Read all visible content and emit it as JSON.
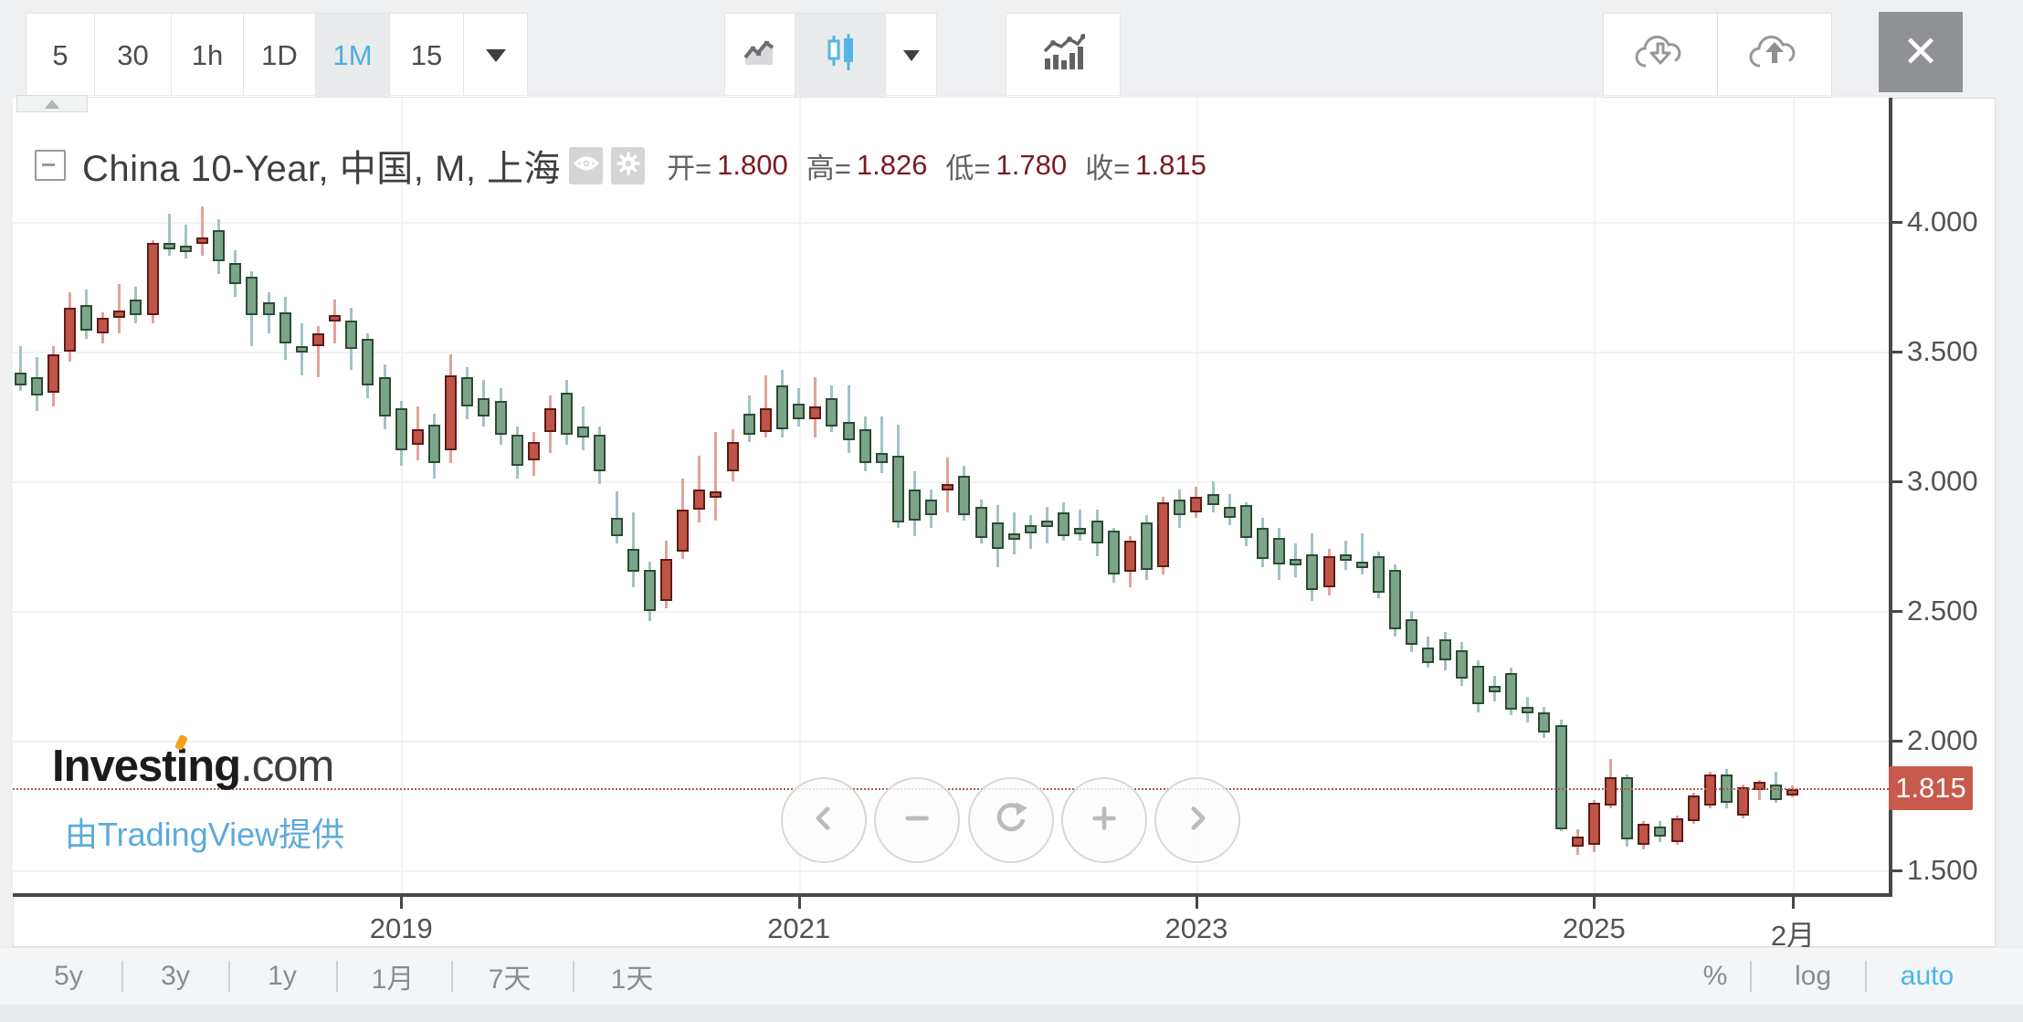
{
  "toolbar": {
    "intervals": [
      {
        "label": "5",
        "active": false
      },
      {
        "label": "30",
        "active": false
      },
      {
        "label": "1h",
        "active": false
      },
      {
        "label": "1D",
        "active": false
      },
      {
        "label": "1M",
        "active": true
      },
      {
        "label": "15",
        "active": false
      }
    ],
    "chart_type_active": "candlestick",
    "accent_blue": "#49b0e3"
  },
  "header": {
    "title": "China 10-Year, 中国, M, 上海",
    "ohlc": [
      {
        "label": "开=",
        "value": "1.800"
      },
      {
        "label": "高=",
        "value": "1.826"
      },
      {
        "label": "低=",
        "value": "1.780"
      },
      {
        "label": "收=",
        "value": "1.815"
      }
    ],
    "value_color": "#7c1a20"
  },
  "branding": {
    "logo_part1": "Invest",
    "logo_i": "i",
    "logo_part2": "ng",
    "logo_suffix": ".com",
    "credit": "由TradingView提供",
    "accent_orange": "#f6a01b",
    "credit_blue": "#5aabdc"
  },
  "nav": [
    "chevron-left-icon",
    "zoom-out-icon",
    "refresh-icon",
    "zoom-in-icon",
    "chevron-right-icon"
  ],
  "bottom_toolbar": {
    "ranges": [
      "5y",
      "3y",
      "1y",
      "1月",
      "7天",
      "1天"
    ],
    "scales": [
      {
        "label": "%",
        "active": false
      },
      {
        "label": "log",
        "active": false
      },
      {
        "label": "auto",
        "active": true
      }
    ],
    "active_color": "#45b8ec"
  },
  "price_axis": {
    "last_price_label": "1.815",
    "badge_color": "#c85a4c"
  },
  "chart_data": {
    "type": "candlestick",
    "title": "China 10-Year, 中国, M, 上海",
    "interval": "1M",
    "current_bar": {
      "open": 1.8,
      "high": 1.826,
      "low": 1.78,
      "close": 1.815
    },
    "last_price": 1.815,
    "up_color": "#bf5449",
    "down_color": "#7ca488",
    "up_wick_color": "#e2a39b",
    "down_wick_color": "#a3c2c6",
    "ylim": [
      1.45,
      4.15
    ],
    "y_ticks": [
      4.0,
      3.5,
      3.0,
      2.5,
      2.0,
      1.5
    ],
    "y_tick_labels": [
      "4.000",
      "3.500",
      "3.000",
      "2.500",
      "2.000",
      "1.500"
    ],
    "x_tick_labels": [
      "2019",
      "2021",
      "2023",
      "2025",
      "2月"
    ],
    "x_tick_indices": [
      23,
      47,
      71,
      95,
      107
    ],
    "grid": true,
    "candles": [
      [
        3.42,
        3.52,
        3.35,
        3.37
      ],
      [
        3.4,
        3.48,
        3.27,
        3.33
      ],
      [
        3.34,
        3.52,
        3.29,
        3.49
      ],
      [
        3.5,
        3.73,
        3.46,
        3.67
      ],
      [
        3.68,
        3.74,
        3.55,
        3.58
      ],
      [
        3.57,
        3.65,
        3.53,
        3.63
      ],
      [
        3.63,
        3.76,
        3.57,
        3.66
      ],
      [
        3.7,
        3.75,
        3.61,
        3.64
      ],
      [
        3.64,
        3.93,
        3.61,
        3.92
      ],
      [
        3.92,
        4.03,
        3.87,
        3.9
      ],
      [
        3.91,
        3.99,
        3.86,
        3.9
      ],
      [
        3.93,
        4.06,
        3.87,
        3.94
      ],
      [
        3.97,
        4.01,
        3.8,
        3.85
      ],
      [
        3.84,
        3.89,
        3.71,
        3.76
      ],
      [
        3.79,
        3.81,
        3.52,
        3.64
      ],
      [
        3.69,
        3.73,
        3.57,
        3.64
      ],
      [
        3.65,
        3.71,
        3.47,
        3.53
      ],
      [
        3.52,
        3.61,
        3.41,
        3.51
      ],
      [
        3.52,
        3.6,
        3.4,
        3.57
      ],
      [
        3.62,
        3.7,
        3.53,
        3.64
      ],
      [
        3.62,
        3.67,
        3.43,
        3.51
      ],
      [
        3.55,
        3.57,
        3.32,
        3.37
      ],
      [
        3.4,
        3.45,
        3.2,
        3.25
      ],
      [
        3.28,
        3.31,
        3.06,
        3.12
      ],
      [
        3.14,
        3.29,
        3.08,
        3.2
      ],
      [
        3.22,
        3.26,
        3.01,
        3.07
      ],
      [
        3.12,
        3.49,
        3.07,
        3.41
      ],
      [
        3.4,
        3.44,
        3.24,
        3.29
      ],
      [
        3.32,
        3.39,
        3.21,
        3.25
      ],
      [
        3.31,
        3.36,
        3.14,
        3.18
      ],
      [
        3.18,
        3.21,
        3.01,
        3.06
      ],
      [
        3.08,
        3.19,
        3.02,
        3.15
      ],
      [
        3.19,
        3.33,
        3.11,
        3.28
      ],
      [
        3.34,
        3.39,
        3.14,
        3.18
      ],
      [
        3.21,
        3.29,
        3.12,
        3.17
      ],
      [
        3.18,
        3.21,
        2.99,
        3.04
      ],
      [
        2.86,
        2.96,
        2.76,
        2.79
      ],
      [
        2.74,
        2.88,
        2.59,
        2.65
      ],
      [
        2.66,
        2.69,
        2.46,
        2.5
      ],
      [
        2.54,
        2.77,
        2.51,
        2.7
      ],
      [
        2.73,
        3.01,
        2.7,
        2.89
      ],
      [
        2.89,
        3.1,
        2.84,
        2.97
      ],
      [
        2.96,
        3.19,
        2.85,
        2.96
      ],
      [
        3.04,
        3.2,
        3.0,
        3.15
      ],
      [
        3.26,
        3.33,
        3.15,
        3.18
      ],
      [
        3.19,
        3.41,
        3.17,
        3.28
      ],
      [
        3.37,
        3.43,
        3.17,
        3.2
      ],
      [
        3.3,
        3.36,
        3.21,
        3.24
      ],
      [
        3.24,
        3.4,
        3.17,
        3.29
      ],
      [
        3.32,
        3.37,
        3.19,
        3.21
      ],
      [
        3.23,
        3.37,
        3.11,
        3.16
      ],
      [
        3.2,
        3.25,
        3.04,
        3.07
      ],
      [
        3.11,
        3.25,
        3.03,
        3.07
      ],
      [
        3.1,
        3.22,
        2.82,
        2.84
      ],
      [
        2.97,
        3.04,
        2.79,
        2.85
      ],
      [
        2.93,
        2.97,
        2.82,
        2.87
      ],
      [
        2.97,
        3.09,
        2.88,
        2.99
      ],
      [
        3.02,
        3.06,
        2.85,
        2.87
      ],
      [
        2.9,
        2.93,
        2.76,
        2.78
      ],
      [
        2.84,
        2.91,
        2.67,
        2.74
      ],
      [
        2.8,
        2.88,
        2.72,
        2.78
      ],
      [
        2.83,
        2.87,
        2.74,
        2.8
      ],
      [
        2.85,
        2.9,
        2.76,
        2.83
      ],
      [
        2.88,
        2.92,
        2.77,
        2.79
      ],
      [
        2.82,
        2.89,
        2.77,
        2.81
      ],
      [
        2.85,
        2.89,
        2.71,
        2.76
      ],
      [
        2.81,
        2.82,
        2.61,
        2.64
      ],
      [
        2.65,
        2.79,
        2.59,
        2.77
      ],
      [
        2.84,
        2.87,
        2.62,
        2.66
      ],
      [
        2.67,
        2.94,
        2.64,
        2.92
      ],
      [
        2.93,
        2.97,
        2.82,
        2.87
      ],
      [
        2.88,
        2.98,
        2.86,
        2.94
      ],
      [
        2.95,
        3.0,
        2.88,
        2.91
      ],
      [
        2.9,
        2.95,
        2.83,
        2.86
      ],
      [
        2.91,
        2.92,
        2.75,
        2.78
      ],
      [
        2.82,
        2.86,
        2.67,
        2.7
      ],
      [
        2.78,
        2.82,
        2.62,
        2.68
      ],
      [
        2.7,
        2.76,
        2.63,
        2.68
      ],
      [
        2.72,
        2.8,
        2.54,
        2.58
      ],
      [
        2.59,
        2.74,
        2.56,
        2.71
      ],
      [
        2.72,
        2.77,
        2.66,
        2.7
      ],
      [
        2.69,
        2.8,
        2.64,
        2.67
      ],
      [
        2.71,
        2.73,
        2.55,
        2.57
      ],
      [
        2.66,
        2.68,
        2.4,
        2.43
      ],
      [
        2.47,
        2.5,
        2.34,
        2.37
      ],
      [
        2.36,
        2.4,
        2.28,
        2.3
      ],
      [
        2.39,
        2.42,
        2.27,
        2.31
      ],
      [
        2.35,
        2.38,
        2.21,
        2.24
      ],
      [
        2.29,
        2.31,
        2.11,
        2.14
      ],
      [
        2.21,
        2.25,
        2.15,
        2.19
      ],
      [
        2.26,
        2.28,
        2.1,
        2.12
      ],
      [
        2.13,
        2.17,
        2.07,
        2.11
      ],
      [
        2.11,
        2.13,
        2.01,
        2.03
      ],
      [
        2.06,
        2.08,
        1.65,
        1.66
      ],
      [
        1.59,
        1.66,
        1.56,
        1.63
      ],
      [
        1.6,
        1.77,
        1.57,
        1.76
      ],
      [
        1.75,
        1.93,
        1.74,
        1.86
      ],
      [
        1.86,
        1.87,
        1.59,
        1.62
      ],
      [
        1.6,
        1.69,
        1.58,
        1.68
      ],
      [
        1.67,
        1.69,
        1.61,
        1.63
      ],
      [
        1.61,
        1.71,
        1.6,
        1.7
      ],
      [
        1.69,
        1.8,
        1.68,
        1.79
      ],
      [
        1.75,
        1.88,
        1.74,
        1.87
      ],
      [
        1.87,
        1.89,
        1.74,
        1.76
      ],
      [
        1.71,
        1.83,
        1.7,
        1.82
      ],
      [
        1.81,
        1.85,
        1.77,
        1.84
      ],
      [
        1.83,
        1.88,
        1.76,
        1.77
      ],
      [
        1.8,
        1.826,
        1.78,
        1.815
      ]
    ]
  }
}
